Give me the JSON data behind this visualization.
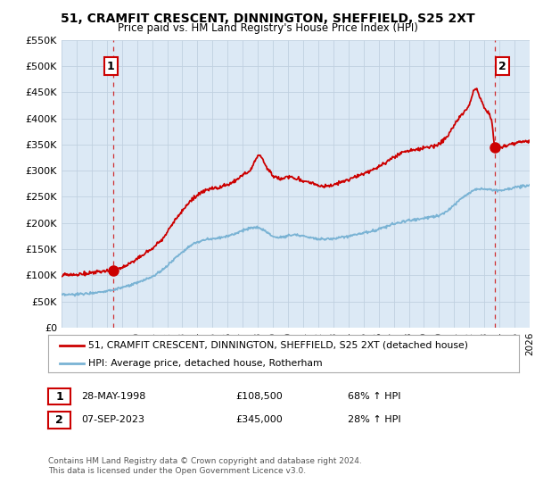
{
  "title": "51, CRAMFIT CRESCENT, DINNINGTON, SHEFFIELD, S25 2XT",
  "subtitle": "Price paid vs. HM Land Registry's House Price Index (HPI)",
  "legend_line1": "51, CRAMFIT CRESCENT, DINNINGTON, SHEFFIELD, S25 2XT (detached house)",
  "legend_line2": "HPI: Average price, detached house, Rotherham",
  "sale1_date": "28-MAY-1998",
  "sale1_price": "£108,500",
  "sale1_hpi": "68% ↑ HPI",
  "sale2_date": "07-SEP-2023",
  "sale2_price": "£345,000",
  "sale2_hpi": "28% ↑ HPI",
  "footer": "Contains HM Land Registry data © Crown copyright and database right 2024.\nThis data is licensed under the Open Government Licence v3.0.",
  "red_color": "#cc0000",
  "blue_color": "#7ab3d4",
  "ylim": [
    0,
    550000
  ],
  "yticks": [
    0,
    50000,
    100000,
    150000,
    200000,
    250000,
    300000,
    350000,
    400000,
    450000,
    500000,
    550000
  ],
  "ytick_labels": [
    "£0",
    "£50K",
    "£100K",
    "£150K",
    "£200K",
    "£250K",
    "£300K",
    "£350K",
    "£400K",
    "£450K",
    "£500K",
    "£550K"
  ],
  "xlim_start": 1995.0,
  "xlim_end": 2026.0,
  "sale1_x": 1998.4,
  "sale1_y": 108500,
  "sale2_x": 2023.67,
  "sale2_y": 345000,
  "bg_color": "#ffffff",
  "plot_bg": "#dce9f5",
  "grid_color": "#c0d0e0",
  "hpi_base": [
    [
      1995.0,
      62000
    ],
    [
      1995.5,
      62500
    ],
    [
      1996.0,
      63500
    ],
    [
      1996.5,
      64500
    ],
    [
      1997.0,
      66000
    ],
    [
      1997.5,
      68000
    ],
    [
      1998.0,
      70000
    ],
    [
      1998.5,
      72500
    ],
    [
      1999.0,
      76000
    ],
    [
      1999.5,
      80000
    ],
    [
      2000.0,
      85000
    ],
    [
      2000.5,
      91000
    ],
    [
      2001.0,
      97000
    ],
    [
      2001.5,
      106000
    ],
    [
      2002.0,
      118000
    ],
    [
      2002.5,
      132000
    ],
    [
      2003.0,
      145000
    ],
    [
      2003.5,
      156000
    ],
    [
      2004.0,
      163000
    ],
    [
      2004.5,
      168000
    ],
    [
      2005.0,
      170000
    ],
    [
      2005.5,
      172000
    ],
    [
      2006.0,
      175000
    ],
    [
      2006.5,
      180000
    ],
    [
      2007.0,
      186000
    ],
    [
      2007.5,
      190000
    ],
    [
      2008.0,
      191000
    ],
    [
      2008.5,
      185000
    ],
    [
      2009.0,
      174000
    ],
    [
      2009.5,
      172000
    ],
    [
      2010.0,
      176000
    ],
    [
      2010.5,
      178000
    ],
    [
      2011.0,
      175000
    ],
    [
      2011.5,
      172000
    ],
    [
      2012.0,
      170000
    ],
    [
      2012.5,
      169000
    ],
    [
      2013.0,
      170000
    ],
    [
      2013.5,
      172000
    ],
    [
      2014.0,
      175000
    ],
    [
      2014.5,
      178000
    ],
    [
      2015.0,
      181000
    ],
    [
      2015.5,
      184000
    ],
    [
      2016.0,
      188000
    ],
    [
      2016.5,
      193000
    ],
    [
      2017.0,
      198000
    ],
    [
      2017.5,
      202000
    ],
    [
      2018.0,
      205000
    ],
    [
      2018.5,
      207000
    ],
    [
      2019.0,
      209000
    ],
    [
      2019.5,
      212000
    ],
    [
      2020.0,
      214000
    ],
    [
      2020.5,
      222000
    ],
    [
      2021.0,
      235000
    ],
    [
      2021.5,
      248000
    ],
    [
      2022.0,
      258000
    ],
    [
      2022.5,
      265000
    ],
    [
      2023.0,
      265000
    ],
    [
      2023.5,
      263000
    ],
    [
      2024.0,
      262000
    ],
    [
      2024.5,
      265000
    ],
    [
      2025.0,
      268000
    ],
    [
      2025.5,
      270000
    ],
    [
      2026.0,
      272000
    ]
  ],
  "red_base": [
    [
      1995.0,
      100000
    ],
    [
      1995.5,
      100500
    ],
    [
      1996.0,
      101500
    ],
    [
      1996.5,
      103000
    ],
    [
      1997.0,
      105000
    ],
    [
      1997.5,
      107000
    ],
    [
      1998.0,
      108000
    ],
    [
      1998.4,
      108500
    ],
    [
      1999.0,
      115000
    ],
    [
      1999.5,
      122000
    ],
    [
      2000.0,
      131000
    ],
    [
      2000.5,
      141000
    ],
    [
      2001.0,
      150000
    ],
    [
      2001.5,
      164000
    ],
    [
      2002.0,
      183000
    ],
    [
      2002.5,
      205000
    ],
    [
      2003.0,
      224000
    ],
    [
      2003.5,
      241000
    ],
    [
      2004.0,
      253000
    ],
    [
      2004.5,
      263000
    ],
    [
      2005.0,
      265000
    ],
    [
      2005.5,
      268000
    ],
    [
      2006.0,
      272000
    ],
    [
      2006.5,
      280000
    ],
    [
      2007.0,
      291000
    ],
    [
      2007.5,
      300000
    ],
    [
      2008.0,
      329000
    ],
    [
      2008.2,
      329000
    ],
    [
      2008.5,
      310000
    ],
    [
      2009.0,
      290000
    ],
    [
      2009.5,
      284000
    ],
    [
      2010.0,
      288000
    ],
    [
      2010.5,
      285000
    ],
    [
      2011.0,
      280000
    ],
    [
      2011.5,
      278000
    ],
    [
      2012.0,
      272000
    ],
    [
      2012.5,
      270000
    ],
    [
      2013.0,
      272000
    ],
    [
      2013.5,
      277000
    ],
    [
      2014.0,
      283000
    ],
    [
      2014.5,
      289000
    ],
    [
      2015.0,
      294000
    ],
    [
      2015.5,
      299000
    ],
    [
      2016.0,
      307000
    ],
    [
      2016.5,
      316000
    ],
    [
      2017.0,
      326000
    ],
    [
      2017.5,
      334000
    ],
    [
      2018.0,
      338000
    ],
    [
      2018.5,
      340000
    ],
    [
      2019.0,
      343000
    ],
    [
      2019.5,
      347000
    ],
    [
      2020.0,
      350000
    ],
    [
      2020.5,
      364000
    ],
    [
      2021.0,
      387000
    ],
    [
      2021.5,
      408000
    ],
    [
      2022.0,
      425000
    ],
    [
      2022.3,
      455000
    ],
    [
      2022.5,
      458000
    ],
    [
      2022.7,
      440000
    ],
    [
      2023.0,
      420000
    ],
    [
      2023.3,
      410000
    ],
    [
      2023.5,
      395000
    ],
    [
      2023.67,
      345000
    ],
    [
      2024.0,
      345000
    ],
    [
      2024.5,
      348000
    ],
    [
      2025.0,
      352000
    ],
    [
      2025.5,
      355000
    ],
    [
      2026.0,
      357000
    ]
  ]
}
